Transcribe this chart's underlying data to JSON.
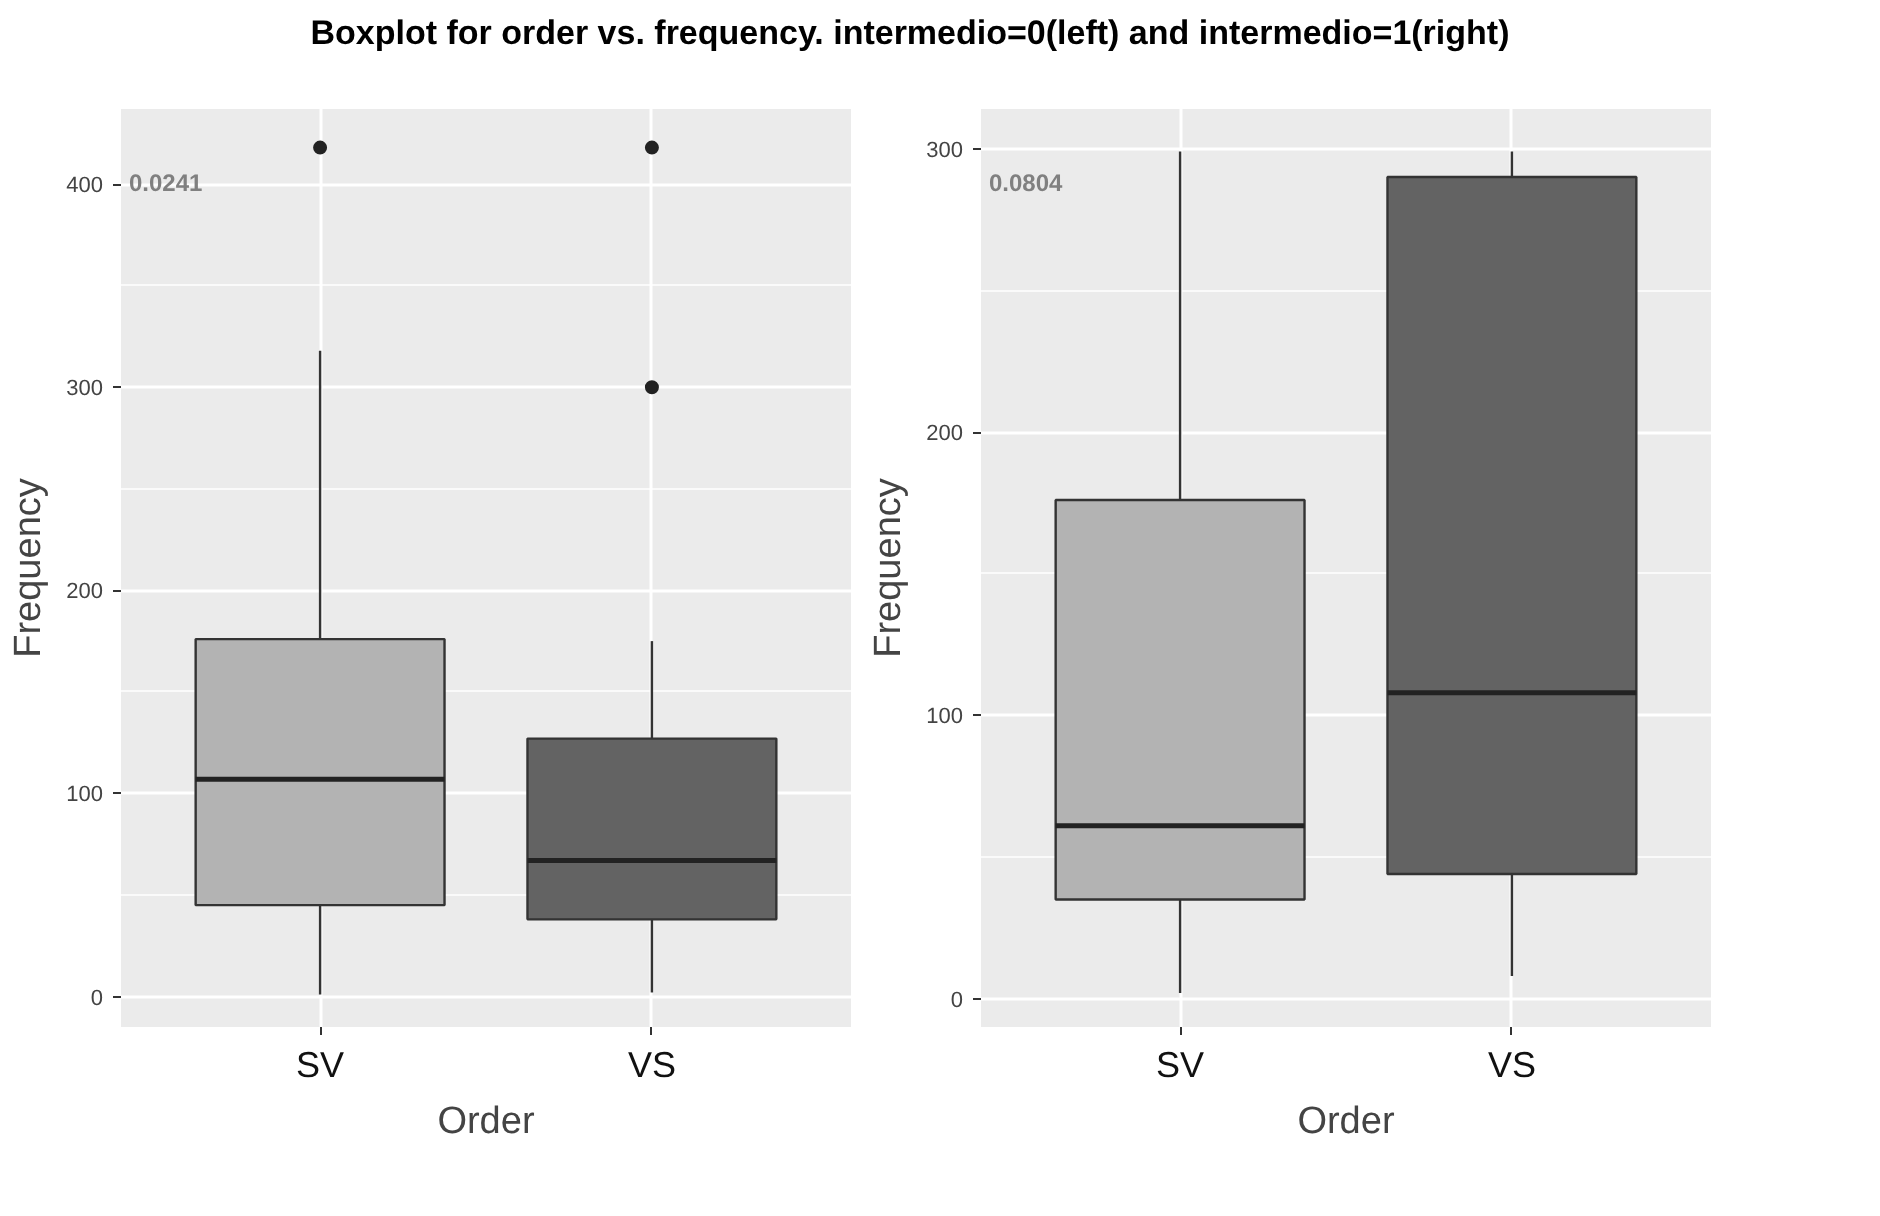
{
  "chart_data": [
    {
      "type": "box",
      "title": "Boxplot for order vs. frequency. intermedio=0(left) and intermedio=1(right)",
      "xlabel": "Order",
      "ylabel": "Frequency",
      "categories": [
        "SV",
        "VS"
      ],
      "colors": [
        "#b3b3b3",
        "#636363"
      ],
      "boxes": [
        {
          "low": 1,
          "q1": 45,
          "median": 107,
          "q3": 176,
          "high": 318,
          "outliers": [
            418
          ]
        },
        {
          "low": 2,
          "q1": 38,
          "median": 67,
          "q3": 127,
          "high": 175,
          "outliers": [
            300,
            418
          ]
        }
      ],
      "ylim": [
        -15,
        437
      ],
      "yticks": [
        0,
        100,
        200,
        300,
        400
      ],
      "grid": true,
      "annotations": [
        "0.0241"
      ]
    },
    {
      "type": "box",
      "xlabel": "Order",
      "ylabel": "Frequency",
      "categories": [
        "SV",
        "VS"
      ],
      "colors": [
        "#b3b3b3",
        "#636363"
      ],
      "boxes": [
        {
          "low": 2,
          "q1": 35,
          "median": 61,
          "q3": 176,
          "high": 299
        },
        {
          "low": 8,
          "q1": 44,
          "median": 108,
          "q3": 290,
          "high": 299
        }
      ],
      "ylim": [
        -10,
        314
      ],
      "yticks": [
        0,
        100,
        200,
        300
      ],
      "grid": true,
      "annotations": [
        "0.0804"
      ]
    }
  ]
}
